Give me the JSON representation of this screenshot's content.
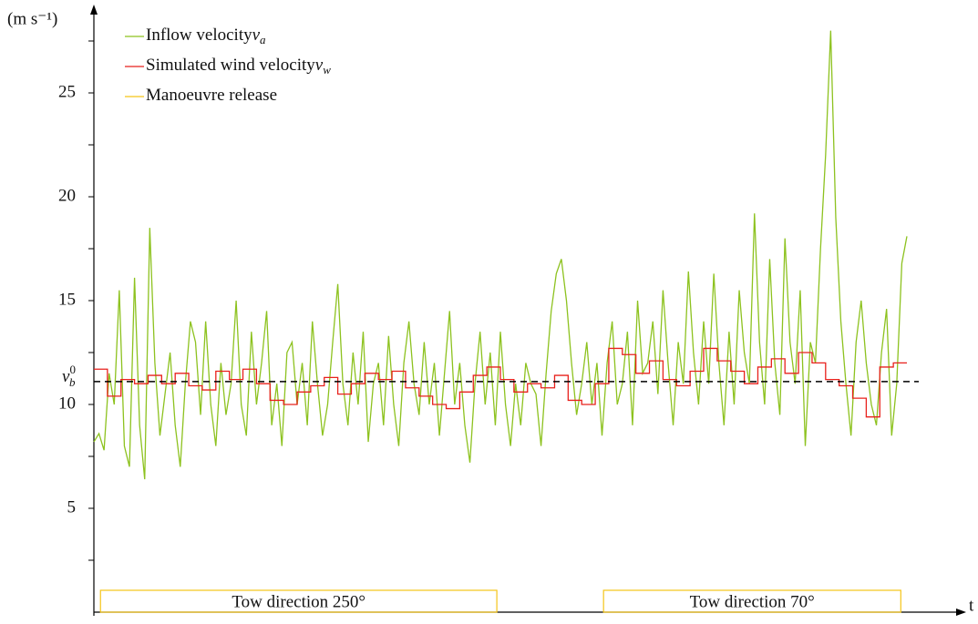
{
  "chart_data": {
    "type": "line",
    "ylabel": "(m s⁻¹)",
    "xlabel": "t",
    "xlim": [
      0,
      160
    ],
    "ylim": [
      0,
      29
    ],
    "yticks": [
      5,
      10,
      15,
      20,
      25
    ],
    "yminorticks": [
      2.5,
      7.5,
      12.5,
      17.5,
      22.5,
      27.5
    ],
    "series": [
      {
        "name": "Inflow velocity",
        "symbol": {
          "main": "v",
          "sub": "a"
        },
        "color": "#8dc21f",
        "style": "line",
        "values": [
          8.2,
          8.6,
          7.8,
          11.5,
          10,
          15.5,
          8,
          7,
          16.1,
          9,
          6.4,
          18.5,
          12,
          8.5,
          10.5,
          12.5,
          9,
          7,
          11,
          14,
          13,
          9.5,
          14,
          10,
          8,
          12,
          9.5,
          11,
          15,
          10,
          8.5,
          13.5,
          10,
          12,
          14.5,
          9,
          11,
          8,
          12.5,
          13,
          10,
          12,
          9,
          14,
          11,
          8.5,
          10,
          13,
          15.8,
          11,
          9,
          12.5,
          10,
          13.5,
          8.2,
          11,
          12,
          9,
          13.3,
          10,
          8,
          12,
          14,
          11,
          9.5,
          13,
          10,
          12,
          8.5,
          11.5,
          14.5,
          10,
          12,
          9,
          7.2,
          11,
          13.5,
          10,
          12.5,
          9,
          13.5,
          10,
          8,
          11,
          9,
          12,
          11,
          10.5,
          8,
          11.5,
          14.5,
          16.3,
          17,
          15,
          12,
          9.5,
          11,
          13,
          10,
          12,
          8.5,
          12,
          14,
          10,
          11,
          13.5,
          9,
          15,
          11.5,
          12,
          14,
          10.5,
          15.5,
          12,
          9,
          13,
          11,
          16.4,
          12.5,
          10,
          14,
          11,
          16.3,
          12,
          9,
          13.5,
          10,
          15.5,
          12.5,
          11,
          19.2,
          13,
          10,
          17,
          12,
          9.5,
          18,
          13,
          11,
          15.5,
          8,
          13,
          12,
          17.5,
          22,
          28,
          19,
          14,
          11,
          8.5,
          13,
          15,
          12,
          10,
          9,
          12.5,
          14.6,
          8.5,
          11,
          16.8,
          18.1
        ]
      },
      {
        "name": "Simulated wind velocity",
        "symbol": {
          "main": "v",
          "sub": "w"
        },
        "color": "#e8211c",
        "style": "step",
        "values": [
          11.7,
          10.4,
          11.2,
          11.0,
          11.4,
          11.0,
          11.5,
          10.9,
          10.7,
          11.6,
          11.2,
          11.7,
          11.0,
          10.2,
          10.0,
          10.6,
          10.9,
          11.3,
          10.5,
          11.0,
          11.5,
          11.2,
          11.6,
          10.8,
          10.4,
          10.0,
          9.8,
          10.6,
          11.4,
          11.8,
          11.2,
          10.6,
          11.0,
          10.8,
          11.4,
          10.2,
          10.0,
          11.0,
          12.7,
          12.4,
          11.5,
          12.1,
          11.2,
          10.9,
          11.6,
          12.7,
          12.1,
          11.6,
          11.0,
          11.8,
          12.2,
          11.5,
          12.5,
          12.0,
          11.2,
          10.9,
          10.3,
          9.4,
          11.8,
          12.0
        ]
      },
      {
        "name": "Manoeuvre release",
        "color": "#f5c518",
        "style": "span"
      }
    ],
    "reference": {
      "main": "v",
      "sub": "b",
      "sup": "0",
      "value": 11.1
    },
    "spans": [
      {
        "label": "Tow direction 250°",
        "range": [
          1.3,
          79.3
        ]
      },
      {
        "label": "Tow direction 70°",
        "range": [
          100.3,
          158.8
        ]
      }
    ]
  }
}
